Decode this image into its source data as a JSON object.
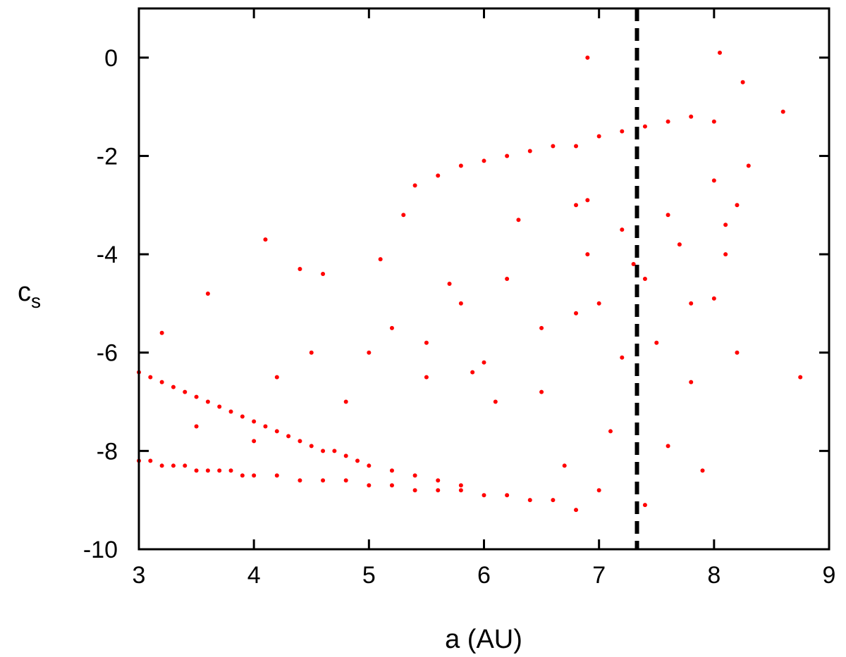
{
  "chart_data": {
    "type": "scatter",
    "title": "",
    "xlabel": "a (AU)",
    "ylabel": "c",
    "ylabel_subscript": "s",
    "xlim": [
      3,
      9
    ],
    "ylim": [
      -10,
      1
    ],
    "xticks": [
      3,
      4,
      5,
      6,
      7,
      8,
      9
    ],
    "yticks": [
      0,
      -2,
      -4,
      -6,
      -8,
      -10
    ],
    "grid": false,
    "legend": "none",
    "point_color": "#ff0000",
    "reference_line": {
      "x": 7.33,
      "style": "dashed",
      "color": "#000000"
    },
    "series": [
      {
        "x": [
          3.0,
          3.1,
          3.2,
          3.3,
          3.4,
          3.5,
          3.6,
          3.7,
          3.8,
          3.9,
          4.0,
          4.2,
          4.4,
          4.6,
          4.8,
          5.0,
          5.2,
          5.4,
          5.6,
          5.8,
          6.0,
          6.2,
          6.4,
          6.6,
          6.8,
          3.0,
          3.1,
          3.2,
          3.3,
          3.4,
          3.5,
          3.6,
          3.7,
          3.8,
          3.9,
          4.0,
          4.1,
          4.2,
          4.3,
          4.4,
          4.5,
          4.6,
          4.7,
          4.8,
          4.9,
          5.0,
          5.2,
          5.4,
          5.6,
          5.8,
          5.4,
          5.6,
          5.8,
          6.0,
          6.2,
          6.4,
          6.6,
          6.8,
          7.0,
          7.2,
          7.4,
          7.6,
          7.8,
          8.0,
          3.5,
          4.0,
          4.2,
          4.5,
          4.8,
          5.0,
          5.2,
          5.5,
          5.8,
          6.0,
          6.2,
          6.5,
          6.8,
          6.9,
          7.0,
          7.2,
          7.4,
          7.6,
          7.8,
          8.0,
          8.1,
          8.2,
          3.2,
          3.6,
          4.1,
          4.4,
          4.6,
          5.1,
          5.3,
          5.5,
          5.7,
          5.9,
          6.1,
          6.3,
          6.5,
          6.7,
          6.8,
          6.9,
          7.0,
          7.1,
          7.2,
          7.3,
          7.4,
          7.5,
          7.6,
          7.7,
          7.8,
          7.9,
          8.0,
          8.1,
          8.2,
          8.3,
          6.9,
          8.05,
          8.25,
          8.6,
          8.75
        ],
        "y": [
          -8.2,
          -8.2,
          -8.3,
          -8.3,
          -8.3,
          -8.4,
          -8.4,
          -8.4,
          -8.4,
          -8.5,
          -8.5,
          -8.5,
          -8.6,
          -8.6,
          -8.6,
          -8.7,
          -8.7,
          -8.8,
          -8.8,
          -8.8,
          -8.9,
          -8.9,
          -9.0,
          -9.0,
          -9.2,
          -6.4,
          -6.5,
          -6.6,
          -6.7,
          -6.8,
          -6.9,
          -7.0,
          -7.1,
          -7.2,
          -7.3,
          -7.4,
          -7.5,
          -7.6,
          -7.7,
          -7.8,
          -7.9,
          -8.0,
          -8.0,
          -8.1,
          -8.2,
          -8.3,
          -8.4,
          -8.5,
          -8.6,
          -8.7,
          -2.6,
          -2.4,
          -2.2,
          -2.1,
          -2.0,
          -1.9,
          -1.8,
          -1.8,
          -1.6,
          -1.5,
          -1.4,
          -1.3,
          -1.2,
          -1.3,
          -7.5,
          -7.8,
          -6.5,
          -6.0,
          -7.0,
          -6.0,
          -5.5,
          -6.5,
          -5.0,
          -6.2,
          -4.5,
          -5.5,
          -3.0,
          -4.0,
          -5.0,
          -3.5,
          -4.5,
          -3.2,
          -5.0,
          -2.5,
          -4.0,
          -3.0,
          -5.6,
          -4.8,
          -3.7,
          -4.3,
          -4.4,
          -4.1,
          -3.2,
          -5.8,
          -4.6,
          -6.4,
          -7.0,
          -3.3,
          -6.8,
          -8.3,
          -5.2,
          -2.9,
          -8.8,
          -7.6,
          -6.1,
          -4.2,
          -9.1,
          -5.8,
          -7.9,
          -3.8,
          -6.6,
          -8.4,
          -4.9,
          -3.4,
          -6.0,
          -2.2,
          0.0,
          0.1,
          -0.5,
          -1.1,
          -6.5
        ]
      }
    ]
  }
}
